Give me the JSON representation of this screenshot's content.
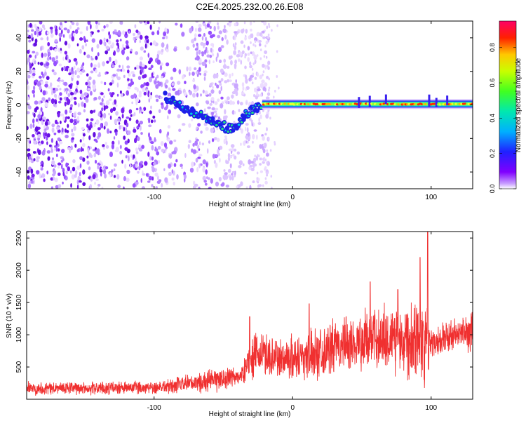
{
  "figure": {
    "title": "C2E4.2025.232.00.26.E08"
  },
  "chart_data": [
    {
      "type": "heatmap",
      "title": "C2E4.2025.232.00.26.E08",
      "xlabel": "Height of straight line (km)",
      "ylabel": "Frequency (Hz)",
      "xlim": [
        -192,
        130
      ],
      "ylim": [
        -50,
        50
      ],
      "x_ticks": [
        -100,
        0,
        100
      ],
      "y_ticks": [
        -40,
        -20,
        0,
        20,
        40
      ],
      "colorbar": {
        "label": "Normalized spectral amplitude",
        "range": [
          0.0,
          0.95
        ],
        "ticks": [
          0.0,
          0.2,
          0.4,
          0.6,
          0.8
        ],
        "colormap": [
          "#ffffff",
          "#7f00ff",
          "#0000ff",
          "#00c8ff",
          "#00ff80",
          "#c8ff00",
          "#ffc800",
          "#ff0000",
          "#ff0066"
        ]
      },
      "features": {
        "noise_region_km": [
          -192,
          -35
        ],
        "chirp_segment": [
          {
            "x": -92,
            "y": 5
          },
          {
            "x": -85,
            "y": 2
          },
          {
            "x": -75,
            "y": -3
          },
          {
            "x": -65,
            "y": -6
          },
          {
            "x": -55,
            "y": -10
          },
          {
            "x": -47,
            "y": -14
          },
          {
            "x": -40,
            "y": -12
          },
          {
            "x": -35,
            "y": -6
          },
          {
            "x": -28,
            "y": -3
          },
          {
            "x": -22,
            "y": 1
          }
        ],
        "steady_tone_hz": 0.5,
        "steady_tone_km": [
          -22,
          130
        ]
      }
    },
    {
      "type": "line",
      "xlabel": "Height of straight line (km)",
      "ylabel": "SNR (10 * v/v)",
      "xlim": [
        -192,
        130
      ],
      "ylim": [
        0,
        2600
      ],
      "x_ticks": [
        -100,
        0,
        100
      ],
      "y_ticks": [
        500,
        1000,
        1500,
        2000,
        2500
      ],
      "color": "#f03030",
      "series": [
        {
          "name": "SNR",
          "x": [
            -192,
            -170,
            -150,
            -130,
            -110,
            -90,
            -70,
            -55,
            -45,
            -37,
            -30,
            -20,
            -10,
            0,
            10,
            20,
            30,
            40,
            50,
            60,
            70,
            80,
            90,
            95,
            100,
            110,
            120,
            130
          ],
          "values": [
            170,
            170,
            170,
            170,
            180,
            200,
            250,
            300,
            330,
            360,
            650,
            700,
            620,
            650,
            680,
            750,
            800,
            850,
            900,
            950,
            950,
            950,
            1000,
            900,
            900,
            950,
            1000,
            1050
          ],
          "spread": [
            120,
            120,
            120,
            120,
            120,
            140,
            180,
            220,
            200,
            150,
            380,
            420,
            380,
            420,
            450,
            480,
            500,
            520,
            520,
            600,
            650,
            700,
            800,
            900,
            300,
            300,
            320,
            350
          ],
          "peaks": [
            {
              "x": 97.5,
              "y": 2600
            },
            {
              "x": 92,
              "y": 2200
            },
            {
              "x": 56,
              "y": 1820
            },
            {
              "x": 76,
              "y": 1700
            },
            {
              "x": -31,
              "y": 1280
            },
            {
              "x": 12,
              "y": 1480
            }
          ]
        }
      ]
    }
  ]
}
